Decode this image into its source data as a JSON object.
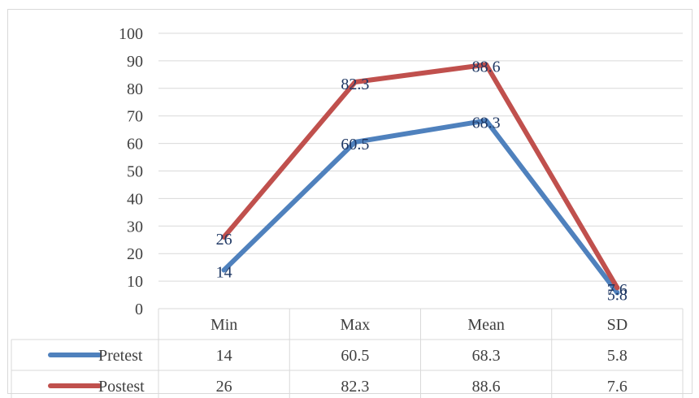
{
  "chart_data": {
    "type": "line",
    "categories": [
      "Min",
      "Max",
      "Mean",
      "SD"
    ],
    "series": [
      {
        "name": "Pretest",
        "values": [
          14,
          60.5,
          68.3,
          5.8
        ],
        "labels": [
          "14",
          "60.5",
          "68.3",
          "5.8"
        ],
        "color": "#4f81bd"
      },
      {
        "name": "Postest",
        "values": [
          26,
          82.3,
          88.6,
          7.6
        ],
        "labels": [
          "26",
          "82.3",
          "88.6",
          "7.6"
        ],
        "color": "#c0504d"
      }
    ],
    "ylim": [
      0,
      100
    ],
    "yticks": [
      "0",
      "10",
      "20",
      "30",
      "40",
      "50",
      "60",
      "70",
      "80",
      "90",
      "100"
    ],
    "grid": true,
    "data_table": true,
    "gridline_color": "#d9d9d9",
    "text_color": "#404040"
  }
}
